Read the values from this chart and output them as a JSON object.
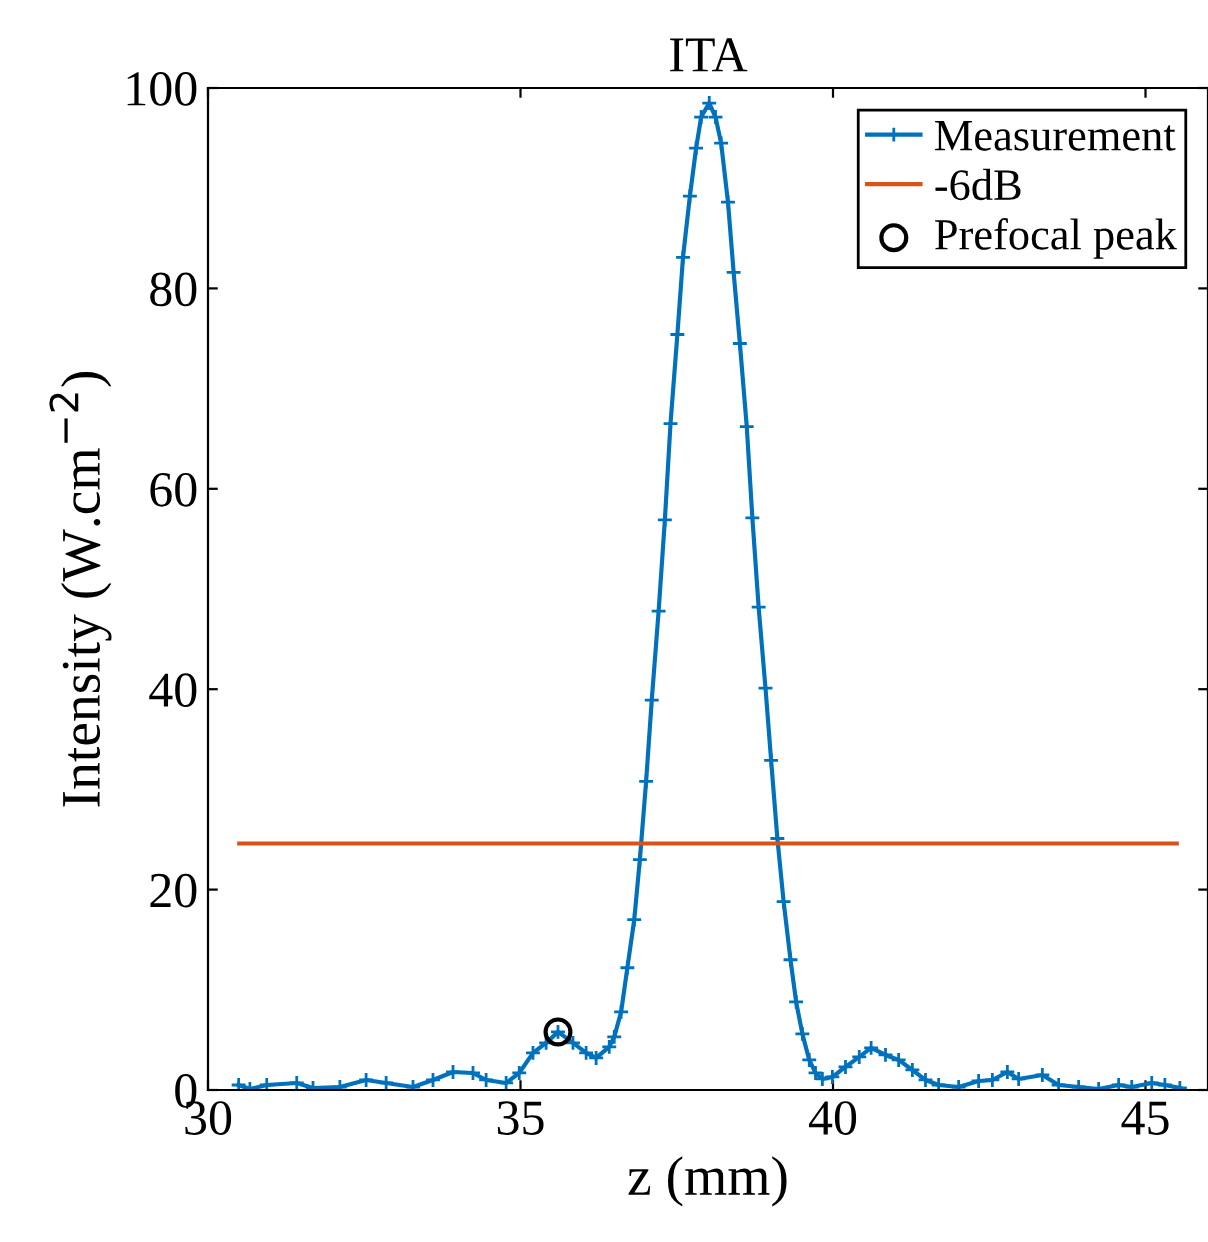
{
  "chart_data": {
    "type": "line",
    "title": "ITA",
    "xlabel": "z (mm)",
    "ylabel": "Intensity (W.cm$^{−2}$)",
    "xlim": [
      30,
      46
    ],
    "xticks": [
      30,
      35,
      40,
      45
    ],
    "ylim": [
      0,
      100
    ],
    "yticks": [
      0,
      20,
      40,
      60,
      80,
      100
    ],
    "grid": false,
    "legend": "top right",
    "series": [
      {
        "name": "Measurement",
        "type": "line",
        "color": "#0072bd",
        "marker": "cross",
        "line_style": "solid",
        "x": [
          30.49,
          30.67,
          30.94,
          31.42,
          31.68,
          32.11,
          32.53,
          32.85,
          33.28,
          33.6,
          33.92,
          34.24,
          34.45,
          34.77,
          34.98,
          35.2,
          35.41,
          35.6,
          35.84,
          36.05,
          36.21,
          36.42,
          36.5,
          36.61,
          36.71,
          36.82,
          36.91,
          37.01,
          37.1,
          37.21,
          37.31,
          37.4,
          37.51,
          37.6,
          37.71,
          37.81,
          37.89,
          38.02,
          38.12,
          38.21,
          38.32,
          38.41,
          38.51,
          38.62,
          38.71,
          38.81,
          38.92,
          39.01,
          39.11,
          39.21,
          39.32,
          39.41,
          39.51,
          39.62,
          39.72,
          39.83,
          39.99,
          40.2,
          40.42,
          40.61,
          40.84,
          41.05,
          41.27,
          41.48,
          41.69,
          42.01,
          42.33,
          42.55,
          42.79,
          42.97,
          43.35,
          43.61,
          43.93,
          44.25,
          44.57,
          44.78,
          45.1,
          45.31,
          45.55
        ],
        "values": [
          0.5,
          0.1,
          0.5,
          0.7,
          0.2,
          0.3,
          1.0,
          0.7,
          0.3,
          1.0,
          1.8,
          1.7,
          1.0,
          0.7,
          1.7,
          3.7,
          4.7,
          5.8,
          4.7,
          3.7,
          3.2,
          4.3,
          5.3,
          7.8,
          12.2,
          17.0,
          23.0,
          30.8,
          38.9,
          47.8,
          56.9,
          66.5,
          75.4,
          83.1,
          89.2,
          94.0,
          97.1,
          98.5,
          97.1,
          94.5,
          88.6,
          81.6,
          74.5,
          66.2,
          57.1,
          48.2,
          40.1,
          32.9,
          25.1,
          18.8,
          13.0,
          8.8,
          5.6,
          3.0,
          1.7,
          1.1,
          1.3,
          2.3,
          3.3,
          4.2,
          3.5,
          3.0,
          2.0,
          1.0,
          0.5,
          0.3,
          0.9,
          1.0,
          1.8,
          1.1,
          1.5,
          0.5,
          0.3,
          0.1,
          0.5,
          0.3,
          0.7,
          0.5,
          0.2
        ]
      },
      {
        "name": "-6dB",
        "type": "line",
        "color": "#d95319",
        "marker": "none",
        "line_style": "solid",
        "x": [
          30.5,
          45.5
        ],
        "values": [
          24.6,
          24.6
        ]
      },
      {
        "name": "Prefocal peak",
        "type": "scatter",
        "color": "#000000",
        "marker": "circle",
        "x": [
          35.6
        ],
        "values": [
          5.8
        ]
      }
    ]
  }
}
